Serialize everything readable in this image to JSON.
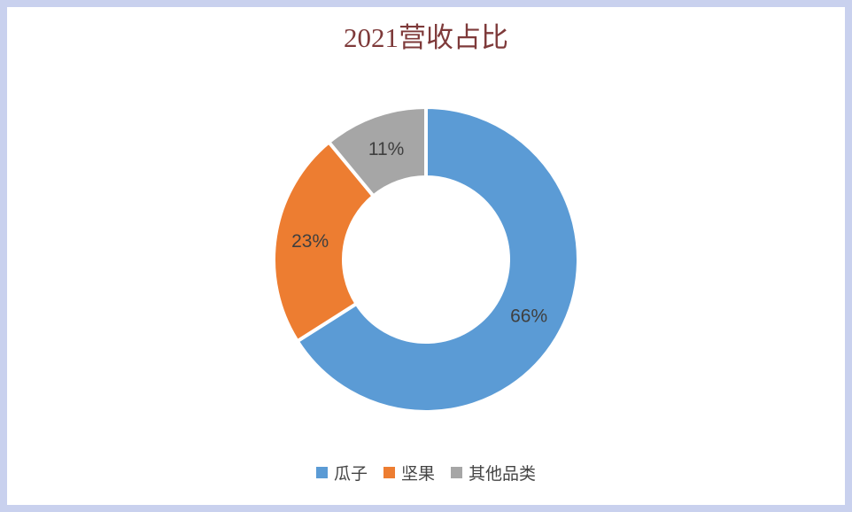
{
  "title": "2021营收占比",
  "chart_data": {
    "type": "pie",
    "subtype": "donut",
    "title": "2021营收占比",
    "categories": [
      "瓜子",
      "坚果",
      "其他品类"
    ],
    "values": [
      66,
      23,
      11
    ],
    "data_labels": [
      "66%",
      "23%",
      "11%"
    ],
    "colors": [
      "#5b9bd5",
      "#ed7d31",
      "#a6a6a6"
    ],
    "start_angle_deg": 0,
    "direction": "clockwise",
    "legend_position": "bottom",
    "hole_ratio": 0.54
  },
  "colors": {
    "page_border": "#c9d1ee",
    "panel_background": "#ffffff",
    "title_text": "#7e3a3a",
    "data_label_text": "#3f3f3f",
    "legend_text": "#444444",
    "slice_gap": "#ffffff"
  }
}
